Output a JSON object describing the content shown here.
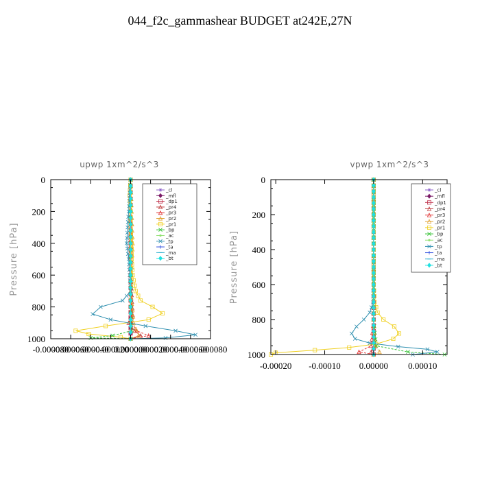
{
  "title": "044_f2c_gammashear  BUDGET at242E,27N",
  "chart_data": [
    {
      "type": "line",
      "title": "upwp   1xm^2/s^3",
      "ylabel": "Pressure [hPa]",
      "ylim": [
        1000,
        0
      ],
      "xlim": [
        -8e-05,
        8e-05
      ],
      "yticks": [
        0,
        200,
        400,
        600,
        800,
        1000
      ],
      "xtick_labels": [
        "-0.000080",
        "-0.000060",
        "-0.000040",
        "-0.000020",
        "0.000000",
        "0.000020",
        "0.000040",
        "0.000060",
        "0.000080"
      ],
      "legend_position": "top-right",
      "series": [
        {
          "name": "_cl",
          "color": "#8a5cc8",
          "p": [
            0,
            200,
            400,
            600,
            800,
            900,
            1000
          ],
          "x": [
            0,
            0,
            0,
            0,
            0,
            0,
            0
          ]
        },
        {
          "name": "_mfl",
          "color": "#7a1a66",
          "p": [
            0,
            200,
            400,
            600,
            800,
            900,
            1000
          ],
          "x": [
            0,
            0,
            0,
            0,
            0,
            0,
            0
          ]
        },
        {
          "name": "_dp1",
          "color": "#c0304a",
          "p": [
            0,
            200,
            400,
            600,
            800,
            900,
            1000
          ],
          "x": [
            0,
            0,
            0,
            0,
            0,
            0,
            0
          ]
        },
        {
          "name": "_pr4",
          "color": "#c04040",
          "p": [
            0,
            300,
            600,
            850,
            900,
            950,
            980,
            1000
          ],
          "x": [
            0,
            0,
            0,
            2e-06,
            -2e-06,
            4e-06,
            1e-05,
            0
          ]
        },
        {
          "name": "_pr3",
          "color": "#e03030",
          "p": [
            0,
            300,
            600,
            900,
            950,
            980,
            1000
          ],
          "x": [
            0,
            0,
            0,
            1e-06,
            6e-06,
            1.8e-05,
            0
          ]
        },
        {
          "name": "_pr2",
          "color": "#e0a030",
          "p": [
            0,
            200,
            400,
            700,
            900,
            980,
            1000
          ],
          "x": [
            0,
            1e-06,
            2e-06,
            0,
            3e-06,
            8e-06,
            0
          ]
        },
        {
          "name": "_pr1",
          "color": "#f0d020",
          "p": [
            0,
            100,
            200,
            300,
            400,
            500,
            600,
            700,
            760,
            800,
            840,
            880,
            920,
            950,
            970,
            990,
            1000
          ],
          "x": [
            0,
            -1e-06,
            0,
            0,
            1e-06,
            1e-06,
            2e-06,
            5e-06,
            1e-05,
            2.2e-05,
            3.2e-05,
            1.8e-05,
            -2.5e-05,
            -5.5e-05,
            -4.2e-05,
            -1e-05,
            0
          ]
        },
        {
          "name": "_bp",
          "color": "#30c030",
          "p": [
            0,
            400,
            800,
            950,
            980,
            995,
            1000
          ],
          "x": [
            0,
            0,
            0,
            1e-06,
            -1.8e-05,
            -4e-05,
            0
          ]
        },
        {
          "name": "_ac",
          "color": "#90e070",
          "p": [
            0,
            400,
            800,
            1000
          ],
          "x": [
            0,
            0,
            0,
            0
          ]
        },
        {
          "name": "_tp",
          "color": "#3090b0",
          "p": [
            0,
            100,
            200,
            300,
            400,
            500,
            600,
            700,
            760,
            800,
            845,
            880,
            920,
            950,
            975,
            995,
            1000
          ],
          "x": [
            0,
            -1e-06,
            -2e-06,
            -3e-06,
            -4e-06,
            -2e-06,
            -1e-06,
            0,
            -8e-06,
            -3e-05,
            -3.8e-05,
            -2e-05,
            1.5e-05,
            4.5e-05,
            6.5e-05,
            3.5e-05,
            0
          ]
        },
        {
          "name": "_ta",
          "color": "#3050e0",
          "p": [
            0,
            200,
            400,
            600,
            800,
            1000
          ],
          "x": [
            0,
            0,
            0,
            0,
            0,
            0
          ]
        },
        {
          "name": "_ma",
          "color": "#30b0d0",
          "p": [
            0,
            200,
            400,
            600,
            800,
            1000
          ],
          "x": [
            0,
            0,
            0,
            0,
            0,
            0
          ]
        },
        {
          "name": "_bt",
          "color": "#20e0e0",
          "p": [
            0,
            200,
            400,
            600,
            800,
            1000
          ],
          "x": [
            0,
            0,
            0,
            0,
            0,
            0
          ]
        }
      ]
    },
    {
      "type": "line",
      "title": "vpwp   1xm^2/s^3",
      "ylabel": "Pressure [hPa]",
      "ylim": [
        1000,
        0
      ],
      "xlim": [
        -0.00021,
        0.00015
      ],
      "yticks": [
        0,
        200,
        400,
        600,
        800,
        1000
      ],
      "xtick_labels": [
        "-0.00020",
        "-0.00010",
        "0.00000",
        "0.00010"
      ],
      "xtick_values": [
        -0.0002,
        -0.0001,
        0,
        0.0001
      ],
      "legend_position": "top-right",
      "series": [
        {
          "name": "_cl",
          "color": "#8a5cc8",
          "p": [
            0,
            200,
            400,
            600,
            800,
            1000
          ],
          "x": [
            0,
            0,
            0,
            0,
            0,
            0
          ]
        },
        {
          "name": "_mfl",
          "color": "#7a1a66",
          "p": [
            0,
            200,
            400,
            600,
            800,
            1000
          ],
          "x": [
            0,
            0,
            0,
            0,
            0,
            0
          ]
        },
        {
          "name": "_dp1",
          "color": "#c0304a",
          "p": [
            0,
            200,
            400,
            600,
            800,
            1000
          ],
          "x": [
            0,
            0,
            0,
            0,
            0,
            0
          ]
        },
        {
          "name": "_pr4",
          "color": "#c04040",
          "p": [
            0,
            400,
            800,
            950,
            985,
            1000
          ],
          "x": [
            0,
            0,
            0,
            2e-06,
            -5e-06,
            0
          ]
        },
        {
          "name": "_pr3",
          "color": "#e03030",
          "p": [
            0,
            400,
            800,
            950,
            985,
            1000
          ],
          "x": [
            0,
            0,
            0,
            -5e-06,
            -3e-05,
            0
          ]
        },
        {
          "name": "_pr2",
          "color": "#e0a030",
          "p": [
            0,
            400,
            800,
            950,
            985,
            1000
          ],
          "x": [
            0,
            0,
            0,
            3e-06,
            1.2e-05,
            0
          ]
        },
        {
          "name": "_pr1",
          "color": "#f0d020",
          "p": [
            0,
            200,
            400,
            600,
            700,
            760,
            800,
            840,
            880,
            910,
            940,
            960,
            975,
            990,
            1000
          ],
          "x": [
            0,
            0,
            0,
            0,
            2e-06,
            8e-06,
            2e-05,
            4.2e-05,
            5.2e-05,
            4e-05,
            5e-06,
            -5e-05,
            -0.00012,
            -0.0002,
            -0.00021
          ]
        },
        {
          "name": "_bp",
          "color": "#30c030",
          "p": [
            0,
            400,
            800,
            950,
            985,
            1000
          ],
          "x": [
            0,
            0,
            0,
            5e-06,
            7e-05,
            0.000145
          ]
        },
        {
          "name": "_ac",
          "color": "#90e070",
          "p": [
            0,
            400,
            800,
            1000
          ],
          "x": [
            0,
            0,
            0,
            0
          ]
        },
        {
          "name": "_tp",
          "color": "#3090b0",
          "p": [
            0,
            200,
            400,
            600,
            700,
            760,
            800,
            840,
            880,
            910,
            935,
            955,
            970,
            985,
            1000
          ],
          "x": [
            0,
            0,
            0,
            0,
            -1e-06,
            -8e-06,
            -2e-05,
            -3.5e-05,
            -4.5e-05,
            -3.8e-05,
            -8e-06,
            5e-05,
            0.00011,
            0.00013,
            8e-05
          ]
        },
        {
          "name": "_ta",
          "color": "#3050e0",
          "p": [
            0,
            200,
            400,
            600,
            800,
            1000
          ],
          "x": [
            0,
            0,
            0,
            0,
            0,
            0
          ]
        },
        {
          "name": "_ma",
          "color": "#30b0d0",
          "p": [
            0,
            200,
            400,
            600,
            800,
            1000
          ],
          "x": [
            0,
            0,
            0,
            0,
            0,
            0
          ]
        },
        {
          "name": "_bt",
          "color": "#20e0e0",
          "p": [
            0,
            200,
            400,
            600,
            800,
            1000
          ],
          "x": [
            0,
            0,
            0,
            0,
            0,
            0
          ]
        }
      ]
    }
  ]
}
